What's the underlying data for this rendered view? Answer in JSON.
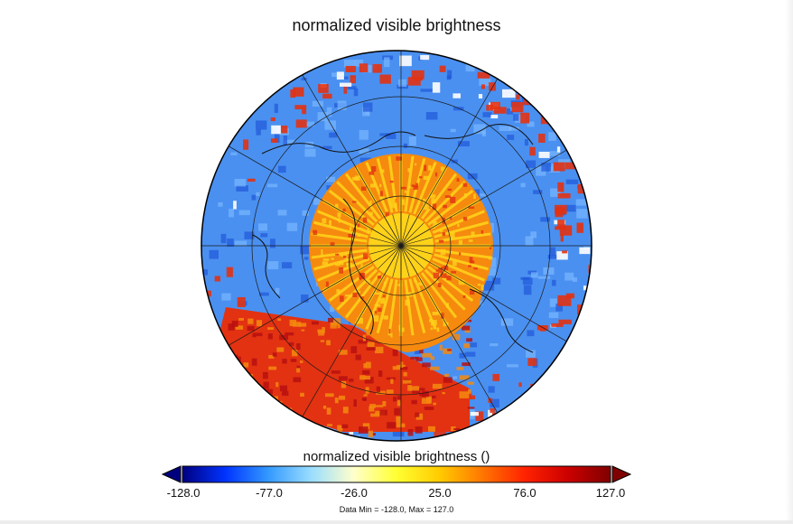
{
  "map": {
    "title": "normalized visible brightness",
    "projection": "orthographic",
    "center": "north-pole",
    "grid": true,
    "coastlines": true
  },
  "colorbar": {
    "label": "normalized visible brightness ()",
    "min": -128.0,
    "max": 127.0,
    "ticks": [
      "-128.0",
      "-77.0",
      "-26.0",
      "25.0",
      "76.0",
      "127.0"
    ],
    "tick_values": [
      -128,
      -77,
      -26,
      25,
      76,
      127
    ],
    "extend": "both",
    "colormap": [
      "#00007f",
      "#0033ff",
      "#3399ff",
      "#99ddff",
      "#ffffcc",
      "#ffff33",
      "#ffcc00",
      "#ff7700",
      "#ff2200",
      "#cc0000",
      "#7f0000"
    ]
  },
  "data_range": {
    "text": "Data Min = -128.0, Max = 127.0"
  },
  "colors": {
    "ocean_blue": "#4a90f0",
    "deep_blue": "#1f57d8",
    "red": "#e23212",
    "orange": "#f58a0f",
    "yellow": "#ffd21a"
  }
}
